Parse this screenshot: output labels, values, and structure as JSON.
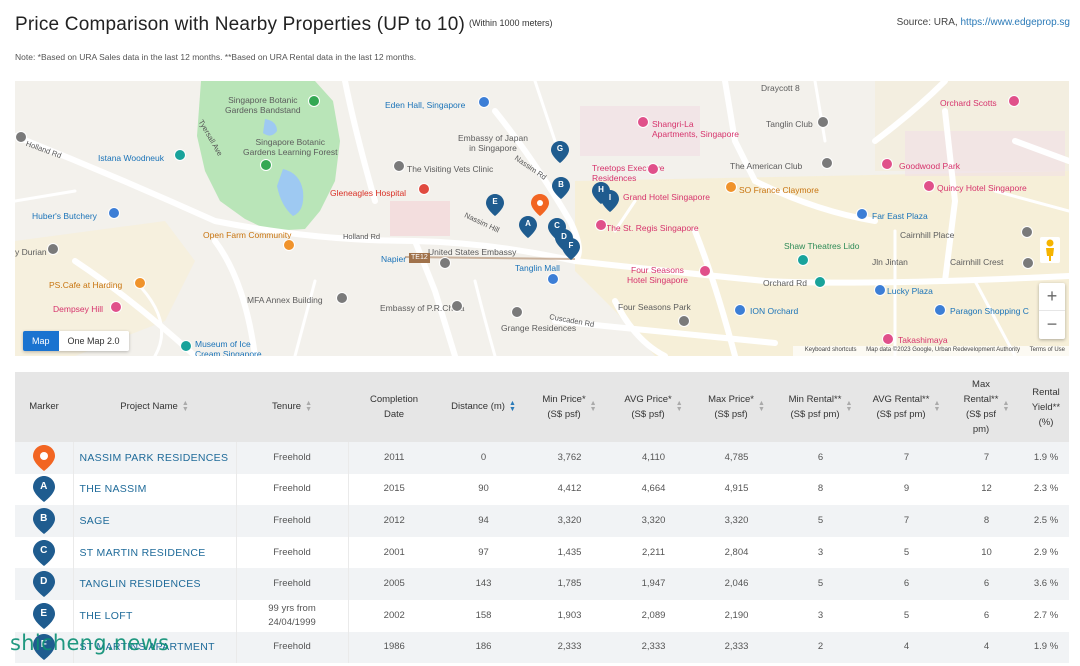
{
  "header": {
    "title": "Price Comparison with Nearby Properties (UP to 10)",
    "subtitle": "(Within 1000 meters)",
    "source_prefix": "Source: URA, ",
    "source_link": "https://www.edgeprop.sg",
    "note": "Note: *Based on URA Sales data in the last 12 months. **Based on URA Rental data in the last 12 months."
  },
  "map": {
    "toggle": [
      "Map",
      "One Map 2.0"
    ],
    "zoom_in": "+",
    "zoom_out": "−",
    "attribution": [
      "Keyboard shortcuts",
      "Map data ©2023 Google, Urban Redevelopment Authority",
      "Terms of Use"
    ],
    "labels": {
      "botanic_bandstand": "Singapore Botanic\nGardens Bandstand",
      "botanic_forest": "Singapore Botanic\nGardens Learning Forest",
      "eden_hall": "Eden Hall, Singapore",
      "draycott": "Draycott 8",
      "orchard_scotts": "Orchard Scotts",
      "holland_rd": "Holland Rd",
      "tyersall_ave": "Tyersall Ave",
      "istana": "Istana Woodneuk",
      "embassy_japan": "Embassy of Japan\nin Singapore",
      "shangri_la": "Shangri-La\nApartments, Singapore",
      "tanglin_club": "Tanglin Club",
      "visiting_vets": "The Visiting Vets Clinic",
      "nassim_rd": "Nassim Rd",
      "treetops": "Treetops Executive\nResidences",
      "american_club": "The American Club",
      "goodwood": "Goodwood Park",
      "gleneagles": "Gleneagles Hospital",
      "grand_hotel": "Grand Hotel Singapore",
      "so_france": "SO France Claymore",
      "quincy": "Quincy Hotel Singapore",
      "hubers": "Huber's Butchery",
      "far_east": "Far East Plaza",
      "st_regis": "The St. Regis Singapore",
      "cairnhill": "Cairnhill Place",
      "open_farm": "Open Farm Community",
      "holland_rd2": "Holland Rd",
      "nassim_hill": "Nassim Hill",
      "shaw": "Shaw Theatres Lido",
      "us_embassy": "United States Embassy",
      "durian": "y Durian",
      "napier": "Napier",
      "tanglin_mall": "Tanglin Mall",
      "jln_jintan": "Jln Jintan",
      "cairnhill_crest": "Cairnhill Crest",
      "orchard_rd": "Orchard Rd",
      "ps_cafe": "PS.Cafe at Harding",
      "four_seasons_hotel": "Four Seasons\nHotel Singapore",
      "lucky_plaza": "Lucky Plaza",
      "dempsey": "Dempsey Hill",
      "mfa": "MFA Annex Building",
      "embassy_prc": "Embassy of P.R.China",
      "four_seasons_park": "Four Seasons Park",
      "ion": "ION Orchard",
      "paragon": "Paragon Shopping C",
      "grange": "Grange Residences",
      "cuscaden": "Cuscaden Rd",
      "museum": "Museum of Ice\nCream Singapore",
      "takashimaya": "Takashimaya",
      "te12": "TE12"
    },
    "pins": [
      {
        "label": "G",
        "color": "#1f5c8f"
      },
      {
        "label": "B",
        "color": "#1f5c8f"
      },
      {
        "label": "H",
        "color": "#1f5c8f"
      },
      {
        "label": "I",
        "color": "#1f5c8f"
      },
      {
        "label": "E",
        "color": "#1f5c8f"
      },
      {
        "label": "",
        "color": "#f26522"
      },
      {
        "label": "A",
        "color": "#1f5c8f"
      },
      {
        "label": "C",
        "color": "#1f5c8f"
      },
      {
        "label": "D",
        "color": "#1f5c8f"
      },
      {
        "label": "F",
        "color": "#1f5c8f"
      }
    ]
  },
  "table": {
    "columns": [
      {
        "label": "Marker",
        "sort": false
      },
      {
        "label": "Project Name",
        "sort": true
      },
      {
        "label": "Tenure",
        "sort": true
      },
      {
        "label": "Completion\nDate",
        "sort": false
      },
      {
        "label": "Distance (m)",
        "sort": true,
        "active": true
      },
      {
        "label": "Min Price*\n(S$ psf)",
        "sort": true
      },
      {
        "label": "AVG Price*\n(S$ psf)",
        "sort": true
      },
      {
        "label": "Max Price*\n(S$ psf)",
        "sort": true
      },
      {
        "label": "Min Rental**\n(S$ psf pm)",
        "sort": true
      },
      {
        "label": "AVG Rental**\n(S$ psf pm)",
        "sort": true
      },
      {
        "label": "Max\nRental**\n(S$ psf\npm)",
        "sort": true
      },
      {
        "label": "Rental\nYield**\n(%)",
        "sort": false
      }
    ],
    "rows": [
      {
        "marker": "",
        "marker_color": "#f26522",
        "name": "NASSIM PARK RESIDENCES",
        "tenure": "Freehold",
        "completion": "2011",
        "distance": "0",
        "min_price": "3,762",
        "avg_price": "4,110",
        "max_price": "4,785",
        "min_rental": "6",
        "avg_rental": "7",
        "max_rental": "7",
        "yield": "1.9 %"
      },
      {
        "marker": "A",
        "marker_color": "#1f5c8f",
        "name": "THE NASSIM",
        "tenure": "Freehold",
        "completion": "2015",
        "distance": "90",
        "min_price": "4,412",
        "avg_price": "4,664",
        "max_price": "4,915",
        "min_rental": "8",
        "avg_rental": "9",
        "max_rental": "12",
        "yield": "2.3 %"
      },
      {
        "marker": "B",
        "marker_color": "#1f5c8f",
        "name": "SAGE",
        "tenure": "Freehold",
        "completion": "2012",
        "distance": "94",
        "min_price": "3,320",
        "avg_price": "3,320",
        "max_price": "3,320",
        "min_rental": "5",
        "avg_rental": "7",
        "max_rental": "8",
        "yield": "2.5 %"
      },
      {
        "marker": "C",
        "marker_color": "#1f5c8f",
        "name": "ST MARTIN RESIDENCE",
        "tenure": "Freehold",
        "completion": "2001",
        "distance": "97",
        "min_price": "1,435",
        "avg_price": "2,211",
        "max_price": "2,804",
        "min_rental": "3",
        "avg_rental": "5",
        "max_rental": "10",
        "yield": "2.9 %"
      },
      {
        "marker": "D",
        "marker_color": "#1f5c8f",
        "name": "TANGLIN RESIDENCES",
        "tenure": "Freehold",
        "completion": "2005",
        "distance": "143",
        "min_price": "1,785",
        "avg_price": "1,947",
        "max_price": "2,046",
        "min_rental": "5",
        "avg_rental": "6",
        "max_rental": "6",
        "yield": "3.6 %"
      },
      {
        "marker": "E",
        "marker_color": "#1f5c8f",
        "name": "THE LOFT",
        "tenure": "99 yrs from\n24/04/1999",
        "completion": "2002",
        "distance": "158",
        "min_price": "1,903",
        "avg_price": "2,089",
        "max_price": "2,190",
        "min_rental": "3",
        "avg_rental": "5",
        "max_rental": "6",
        "yield": "2.7 %"
      },
      {
        "marker": "F",
        "marker_color": "#1f5c8f",
        "name": "ST MARTINS APARTMENT",
        "tenure": "Freehold",
        "completion": "1986",
        "distance": "186",
        "min_price": "2,333",
        "avg_price": "2,333",
        "max_price": "2,333",
        "min_rental": "2",
        "avg_rental": "4",
        "max_rental": "4",
        "yield": "1.9 %"
      }
    ]
  },
  "watermark": "shicheng.news"
}
